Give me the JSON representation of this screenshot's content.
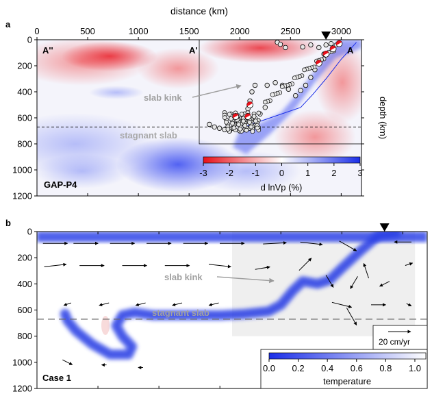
{
  "panels": [
    {
      "label": "a",
      "x_axis_title": "distance (km)",
      "y_axis_title": "depth (km)",
      "model_name": "GAP-P4",
      "section_labels": [
        "A''",
        "A'",
        "A"
      ],
      "annotations": [
        "slab kink",
        "stagnant slab"
      ],
      "colorbar": {
        "label": "d lnVp (%)",
        "ticks": [
          "-3",
          "-2",
          "-1",
          "0",
          "1",
          "2",
          "3"
        ],
        "range": [
          -3,
          3
        ]
      }
    },
    {
      "label": "b",
      "model_name": "Case 1",
      "annotations": [
        "slab kink",
        "stagnant slab"
      ],
      "velocity_scale": "20 cm/yr",
      "colorbar": {
        "label": "temperature",
        "ticks": [
          "0.0",
          "0.2",
          "0.4",
          "0.6",
          "0.8",
          "1.0"
        ],
        "range": [
          0,
          1
        ]
      }
    }
  ],
  "colors": {
    "negative": "#e8101a",
    "positive": "#1a2ee8",
    "neutral": "#ffffff",
    "dashed_line": "#000000"
  },
  "chart_data": [
    {
      "type": "heatmap",
      "title": "",
      "xlabel": "distance (km)",
      "ylabel": "depth (km)",
      "xlim": [
        0,
        3200
      ],
      "ylim": [
        1200,
        0
      ],
      "x_ticks": [
        0,
        500,
        1000,
        1500,
        2000,
        2500,
        3000
      ],
      "y_ticks": [
        0,
        200,
        400,
        600,
        800,
        1000,
        1200
      ],
      "reference_depth_dashed": 670,
      "inset_box": {
        "x": [
          1600,
          3200
        ],
        "depth": [
          0,
          800
        ]
      },
      "trench_marker_x": 2850,
      "slab_path": [
        [
          3150,
          20
        ],
        [
          3000,
          150
        ],
        [
          2850,
          300
        ],
        [
          2720,
          420
        ],
        [
          2600,
          520
        ],
        [
          2450,
          560
        ],
        [
          2300,
          600
        ],
        [
          2150,
          640
        ],
        [
          2050,
          670
        ]
      ],
      "earthquakes": [
        [
          2370,
          20
        ],
        [
          2400,
          35
        ],
        [
          2450,
          60
        ],
        [
          2620,
          55
        ],
        [
          2700,
          40
        ],
        [
          2780,
          60
        ],
        [
          2850,
          40
        ],
        [
          2900,
          30
        ],
        [
          2830,
          110
        ],
        [
          2790,
          170
        ],
        [
          2740,
          230
        ],
        [
          2700,
          290
        ],
        [
          2650,
          350
        ],
        [
          2600,
          390
        ],
        [
          2550,
          430
        ],
        [
          2480,
          380
        ],
        [
          2420,
          350
        ],
        [
          2350,
          330
        ],
        [
          2270,
          350
        ],
        [
          2150,
          350
        ],
        [
          2120,
          400
        ],
        [
          2100,
          470
        ],
        [
          2080,
          530
        ],
        [
          2050,
          570
        ],
        [
          2020,
          600
        ],
        [
          1980,
          620
        ],
        [
          1950,
          650
        ],
        [
          1930,
          680
        ],
        [
          1900,
          700
        ],
        [
          1850,
          690
        ],
        [
          1800,
          680
        ],
        [
          2000,
          700
        ],
        [
          2050,
          690
        ],
        [
          2100,
          680
        ],
        [
          2150,
          660
        ],
        [
          2180,
          620
        ],
        [
          2200,
          570
        ],
        [
          2250,
          520
        ],
        [
          1700,
          650
        ],
        [
          1750,
          670
        ],
        [
          2010,
          650
        ],
        [
          2060,
          630
        ],
        [
          2110,
          610
        ]
      ],
      "focal_mechanisms": [
        [
          2980,
          30
        ],
        [
          2920,
          70
        ],
        [
          2850,
          110
        ],
        [
          2780,
          180
        ],
        [
          2100,
          500
        ],
        [
          2080,
          590
        ],
        [
          1960,
          590
        ]
      ],
      "colorbar_range": [
        -3,
        3
      ],
      "colorbar_label": "d lnVp (%)"
    },
    {
      "type": "heatmap",
      "title": "",
      "xlabel": "",
      "ylabel": "",
      "xlim": [
        0,
        3200
      ],
      "ylim": [
        1200,
        0
      ],
      "y_ticks": [
        0,
        200,
        400,
        600,
        800,
        1000,
        1200
      ],
      "reference_depth_dashed": 670,
      "gray_box": {
        "x": [
          1600,
          3100
        ],
        "depth": [
          0,
          800
        ]
      },
      "trench_marker_x": 2850,
      "slab_path": [
        [
          2950,
          10
        ],
        [
          2800,
          30
        ],
        [
          2650,
          150
        ],
        [
          2500,
          280
        ],
        [
          2400,
          370
        ],
        [
          2300,
          400
        ],
        [
          2180,
          380
        ],
        [
          2100,
          450
        ],
        [
          2000,
          560
        ],
        [
          1900,
          610
        ],
        [
          1700,
          630
        ],
        [
          1500,
          640
        ],
        [
          1200,
          640
        ],
        [
          950,
          640
        ],
        [
          800,
          620
        ],
        [
          700,
          640
        ],
        [
          650,
          720
        ],
        [
          700,
          800
        ],
        [
          780,
          880
        ],
        [
          750,
          940
        ],
        [
          600,
          940
        ],
        [
          450,
          860
        ],
        [
          320,
          760
        ],
        [
          250,
          680
        ],
        [
          230,
          630
        ]
      ],
      "surface_layer": {
        "depth": [
          0,
          80
        ],
        "x": [
          0,
          3200
        ]
      },
      "velocity_arrows": [
        [
          150,
          90,
          1.0,
          0.0
        ],
        [
          400,
          90,
          1.0,
          0.0
        ],
        [
          700,
          90,
          1.0,
          0.0
        ],
        [
          1000,
          90,
          1.0,
          0.0
        ],
        [
          1300,
          90,
          1.0,
          0.0
        ],
        [
          1600,
          90,
          1.0,
          0.0
        ],
        [
          1950,
          90,
          0.95,
          -0.05
        ],
        [
          2250,
          90,
          0.9,
          0.1
        ],
        [
          2550,
          110,
          0.7,
          0.4
        ],
        [
          3000,
          80,
          -0.7,
          0.0
        ],
        [
          150,
          260,
          0.9,
          -0.1
        ],
        [
          450,
          260,
          1.0,
          0.0
        ],
        [
          800,
          260,
          1.0,
          0.0
        ],
        [
          1150,
          260,
          1.0,
          0.0
        ],
        [
          1500,
          260,
          0.9,
          0.1
        ],
        [
          1850,
          280,
          0.6,
          -0.1
        ],
        [
          2200,
          250,
          0.5,
          -0.5
        ],
        [
          2700,
          300,
          -0.2,
          -0.6
        ],
        [
          3050,
          250,
          0.3,
          -0.1
        ],
        [
          450,
          410,
          0.0,
          0.0
        ],
        [
          2400,
          380,
          0.3,
          0.5
        ],
        [
          2600,
          390,
          -0.3,
          0.5
        ],
        [
          2850,
          400,
          -0.4,
          0.2
        ],
        [
          250,
          555,
          -0.3,
          0.1
        ],
        [
          550,
          555,
          -0.4,
          0.1
        ],
        [
          850,
          555,
          -0.4,
          0.1
        ],
        [
          1150,
          555,
          -0.4,
          0.1
        ],
        [
          1450,
          555,
          -0.4,
          0.1
        ],
        [
          2500,
          560,
          0.8,
          0.2
        ],
        [
          2800,
          560,
          0.6,
          0.0
        ],
        [
          3050,
          560,
          0.2,
          0.1
        ],
        [
          2580,
          650,
          0.4,
          0.7
        ],
        [
          250,
          1000,
          0.4,
          0.2
        ],
        [
          550,
          1020,
          -0.2,
          0.0
        ],
        [
          850,
          1040,
          -0.2,
          0.0
        ]
      ],
      "velocity_scale_label": "20 cm/yr",
      "colorbar_range": [
        0,
        1
      ],
      "colorbar_label": "temperature"
    }
  ]
}
